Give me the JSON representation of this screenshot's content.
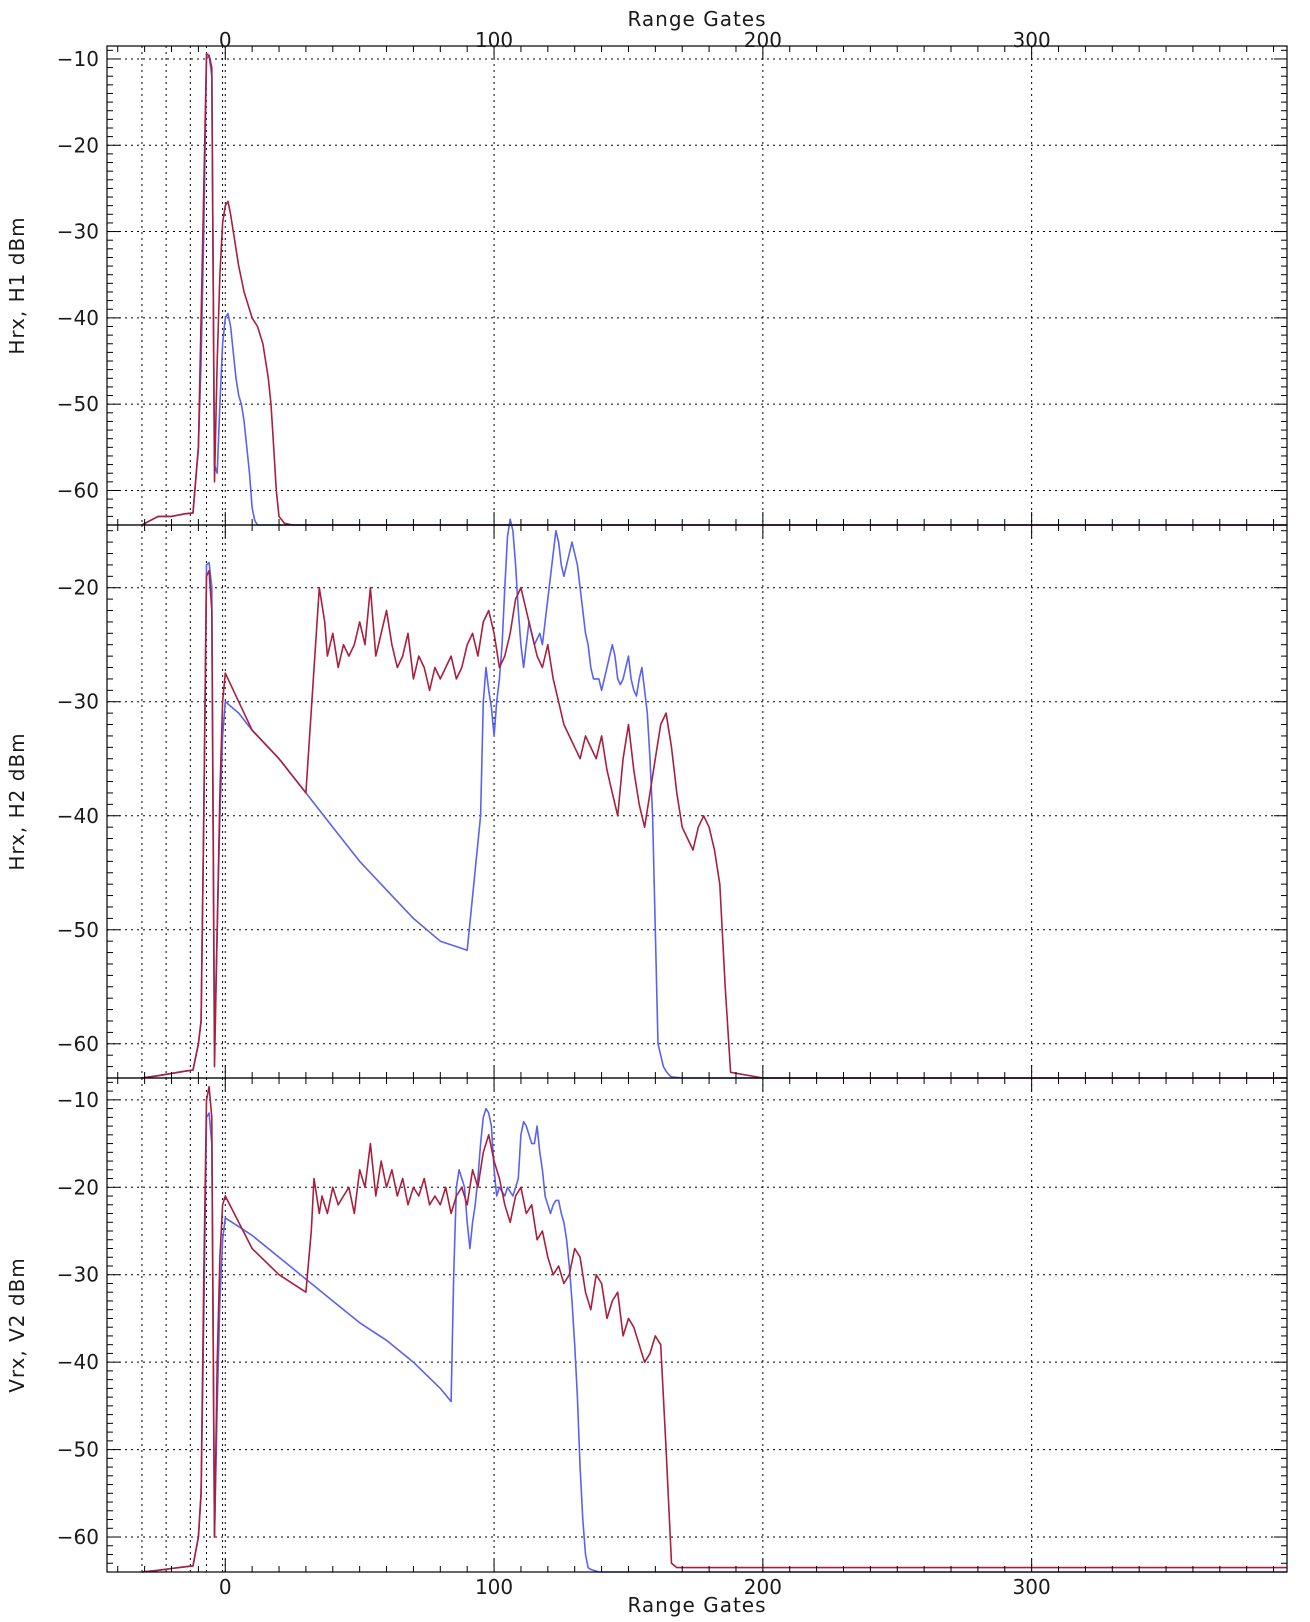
{
  "chart_data": {
    "type": "line",
    "xlabel_top": "Range Gates",
    "xlabel_bottom": "Range Gates",
    "xlim": [
      -44,
      395
    ],
    "x_ticks": [
      0,
      100,
      200,
      300
    ],
    "x_tick_labels": [
      "0",
      "100",
      "200",
      "300"
    ],
    "vertical_dotted_x": [
      -31,
      -22,
      -13,
      -7,
      -1
    ],
    "colors": {
      "blue": "#5b62ee",
      "red": "#a8203e"
    },
    "panels": [
      {
        "ylabel": "Hrx, H1 dBm",
        "ylim": [
          -64,
          -8.5
        ],
        "y_ticks": [
          -10,
          -20,
          -30,
          -40,
          -50,
          -60
        ],
        "y_tick_labels": [
          "−10",
          "−20",
          "−30",
          "−40",
          "−50",
          "−60"
        ],
        "series": [
          {
            "color": "blue",
            "x": [
              -31,
              -28,
              -25,
              -20,
              -15,
              -12,
              -10,
              -9,
              -8,
              -7,
              -6,
              -5,
              -4,
              -3,
              -2,
              -1,
              0,
              1,
              2,
              3,
              4,
              5,
              6,
              7,
              8,
              9,
              10,
              11,
              12,
              14,
              20,
              60,
              120,
              200,
              300,
              395
            ],
            "y": [
              -64,
              -63.5,
              -63,
              -63,
              -62.7,
              -62.6,
              -55,
              -45,
              -30,
              -10,
              -9.6,
              -12,
              -57,
              -58,
              -50,
              -43,
              -40,
              -39.5,
              -41,
              -44,
              -47,
              -49,
              -50,
              -52,
              -55,
              -58,
              -62,
              -63.5,
              -64,
              -64,
              -64,
              -64,
              -64,
              -64,
              -64,
              -64
            ]
          },
          {
            "color": "red",
            "x": [
              -31,
              -28,
              -25,
              -20,
              -15,
              -12,
              -10,
              -9,
              -8,
              -7,
              -6,
              -5,
              -4,
              -3,
              -2,
              -1,
              0,
              1,
              2,
              3,
              4,
              5,
              6,
              7,
              8,
              10,
              12,
              14,
              15,
              16,
              17,
              18,
              19,
              20,
              22,
              25,
              30,
              60,
              120,
              200,
              300,
              395
            ],
            "y": [
              -64,
              -63.5,
              -63,
              -63,
              -62.7,
              -62.6,
              -55,
              -40,
              -25,
              -9.4,
              -9.6,
              -11,
              -59,
              -45,
              -35,
              -29,
              -27,
              -26.5,
              -28,
              -30,
              -32,
              -34,
              -35.5,
              -37,
              -38,
              -40,
              -41,
              -43,
              -45,
              -47,
              -50,
              -55,
              -60,
              -63,
              -63.8,
              -64,
              -64,
              -64,
              -64,
              -64,
              -64,
              -64
            ]
          }
        ]
      },
      {
        "ylabel": "Hrx, H2 dBm",
        "ylim": [
          -63,
          -14.5
        ],
        "y_ticks": [
          -20,
          -30,
          -40,
          -50,
          -60
        ],
        "y_tick_labels": [
          "−20",
          "−30",
          "−40",
          "−50",
          "−60"
        ],
        "series": [
          {
            "color": "blue",
            "x": [
              -31,
              -25,
              -20,
              -15,
              -12,
              -10,
              -9,
              -8,
              -7,
              -6,
              -5,
              -4,
              -3,
              -2,
              -1,
              0,
              5,
              10,
              20,
              30,
              40,
              50,
              60,
              70,
              80,
              90,
              95,
              96,
              97,
              98,
              99,
              100,
              101,
              102,
              103,
              104,
              105,
              106,
              107,
              108,
              109,
              110,
              111,
              112,
              113,
              114,
              115,
              116,
              117,
              118,
              119,
              120,
              121,
              122,
              123,
              124,
              125,
              126,
              127,
              128,
              129,
              130,
              131,
              132,
              133,
              134,
              135,
              136,
              137,
              138,
              139,
              140,
              141,
              142,
              143,
              144,
              145,
              146,
              147,
              148,
              149,
              150,
              151,
              152,
              153,
              154,
              155,
              156,
              157,
              158,
              159,
              160,
              161,
              162,
              163,
              164,
              165,
              166,
              170,
              180,
              200,
              300,
              395
            ],
            "y": [
              -63,
              -62.8,
              -62.6,
              -62.4,
              -62.3,
              -60,
              -58,
              -40,
              -18,
              -17.8,
              -20,
              -60,
              -50,
              -40,
              -33,
              -30,
              -31,
              -32.5,
              -35,
              -38,
              -41,
              -44,
              -46.5,
              -49,
              -51,
              -51.8,
              -40,
              -30,
              -27,
              -29,
              -30.5,
              -33,
              -30,
              -28,
              -25,
              -20,
              -15.5,
              -14,
              -15,
              -18,
              -22,
              -25,
              -27,
              -25,
              -23,
              -24,
              -25,
              -24.5,
              -24,
              -25,
              -23,
              -21,
              -19,
              -17,
              -15,
              -16,
              -18,
              -19,
              -18,
              -17,
              -16,
              -17,
              -18,
              -20,
              -22,
              -24,
              -25,
              -27,
              -28,
              -28,
              -28,
              -29,
              -28,
              -27,
              -26,
              -25,
              -26,
              -28,
              -28.5,
              -28,
              -27,
              -26,
              -28,
              -29,
              -29.5,
              -28,
              -27,
              -29,
              -31,
              -35,
              -40,
              -50,
              -60,
              -61,
              -62,
              -62.4,
              -62.7,
              -62.9,
              -63,
              -63,
              -63,
              -63,
              -63
            ]
          },
          {
            "color": "red",
            "x": [
              -31,
              -25,
              -20,
              -15,
              -12,
              -10,
              -9,
              -8,
              -7,
              -6,
              -5,
              -4,
              -3,
              -2,
              -1,
              0,
              5,
              10,
              20,
              30,
              35,
              37,
              38,
              40,
              42,
              44,
              46,
              48,
              50,
              52,
              54,
              56,
              58,
              60,
              62,
              64,
              66,
              68,
              70,
              72,
              74,
              76,
              78,
              80,
              82,
              84,
              86,
              88,
              90,
              92,
              94,
              96,
              98,
              100,
              102,
              104,
              106,
              108,
              110,
              112,
              114,
              116,
              118,
              120,
              122,
              124,
              126,
              128,
              130,
              132,
              134,
              136,
              138,
              140,
              142,
              144,
              146,
              148,
              150,
              152,
              154,
              156,
              158,
              160,
              162,
              164,
              166,
              168,
              170,
              172,
              174,
              176,
              178,
              180,
              182,
              184,
              186,
              188,
              200,
              300,
              395
            ],
            "y": [
              -63,
              -62.8,
              -62.6,
              -62.4,
              -62.3,
              -60,
              -58,
              -40,
              -19,
              -18.5,
              -22,
              -62,
              -50,
              -38,
              -30,
              -27.5,
              -30,
              -32.5,
              -35,
              -38,
              -20,
              -23,
              -26,
              -24,
              -27,
              -25,
              -26,
              -25,
              -23,
              -25,
              -20,
              -26,
              -24,
              -22,
              -25,
              -27,
              -26,
              -24,
              -28,
              -26,
              -27,
              -29,
              -27,
              -28,
              -27,
              -26,
              -28,
              -27,
              -25,
              -24,
              -26,
              -23,
              -22,
              -24,
              -27,
              -26,
              -24,
              -21,
              -20,
              -22,
              -24,
              -26,
              -27,
              -25,
              -28,
              -30,
              -32,
              -33,
              -34,
              -35,
              -33,
              -34,
              -35,
              -33,
              -36,
              -38,
              -40,
              -35,
              -32,
              -36,
              -39,
              -41,
              -38,
              -35,
              -32,
              -31,
              -34,
              -38,
              -41,
              -42,
              -43,
              -41,
              -40,
              -41,
              -43,
              -46,
              -55,
              -62.5,
              -63,
              -63,
              -63
            ]
          }
        ]
      },
      {
        "ylabel": "Vrx, V2 dBm",
        "ylim": [
          -64,
          -7.5
        ],
        "y_ticks": [
          -10,
          -20,
          -30,
          -40,
          -50,
          -60
        ],
        "y_tick_labels": [
          "−10",
          "−20",
          "−30",
          "−40",
          "−50",
          "−60"
        ],
        "series": [
          {
            "color": "blue",
            "x": [
              -31,
              -25,
              -20,
              -15,
              -12,
              -10,
              -9,
              -8,
              -7,
              -6,
              -5,
              -4,
              -3,
              -2,
              -1,
              0,
              5,
              10,
              20,
              30,
              40,
              50,
              60,
              70,
              80,
              84,
              85,
              86,
              87,
              88,
              89,
              90,
              91,
              92,
              93,
              94,
              95,
              96,
              97,
              98,
              99,
              100,
              101,
              102,
              103,
              104,
              105,
              106,
              107,
              108,
              109,
              110,
              111,
              112,
              113,
              114,
              115,
              116,
              117,
              118,
              119,
              120,
              121,
              122,
              123,
              124,
              125,
              126,
              127,
              128,
              129,
              130,
              131,
              132,
              133,
              134,
              135,
              136,
              137,
              138,
              139,
              140,
              141,
              142,
              143,
              144,
              145,
              150,
              160,
              200,
              300,
              395
            ],
            "y": [
              -64,
              -63.8,
              -63.6,
              -63.4,
              -63.3,
              -60,
              -55,
              -35,
              -12,
              -11.5,
              -15,
              -60,
              -45,
              -33,
              -26,
              -23.5,
              -24.5,
              -25.5,
              -28,
              -30.5,
              -33,
              -35.5,
              -37.5,
              -40,
              -43,
              -44.5,
              -30,
              -20,
              -18,
              -19,
              -20,
              -24,
              -27,
              -24,
              -22,
              -19,
              -15,
              -12,
              -11,
              -11.5,
              -13,
              -18,
              -21,
              -20,
              -20.5,
              -21,
              -20,
              -20.5,
              -21,
              -20,
              -19,
              -14,
              -12.5,
              -13,
              -14,
              -15,
              -15,
              -13,
              -16,
              -18,
              -21,
              -22,
              -23,
              -22,
              -21.5,
              -21.5,
              -23,
              -24,
              -26,
              -29,
              -33,
              -38,
              -44,
              -52,
              -58,
              -62,
              -63.5,
              -63.7,
              -63.8,
              -63.9,
              -64,
              -64,
              -64,
              -64,
              -64,
              -64,
              -64,
              -64,
              -64,
              -64,
              -64,
              -64
            ]
          },
          {
            "color": "red",
            "x": [
              -31,
              -25,
              -20,
              -15,
              -12,
              -10,
              -9,
              -8,
              -7,
              -6,
              -5,
              -4,
              -3,
              -2,
              -1,
              0,
              5,
              10,
              20,
              30,
              32,
              33,
              35,
              36,
              38,
              40,
              42,
              44,
              46,
              48,
              50,
              52,
              54,
              56,
              58,
              60,
              62,
              64,
              66,
              68,
              70,
              72,
              74,
              76,
              78,
              80,
              82,
              84,
              86,
              88,
              90,
              92,
              94,
              96,
              98,
              100,
              102,
              104,
              106,
              108,
              110,
              112,
              114,
              116,
              118,
              120,
              122,
              124,
              126,
              128,
              130,
              132,
              134,
              136,
              138,
              140,
              142,
              144,
              146,
              148,
              150,
              152,
              154,
              156,
              158,
              160,
              162,
              164,
              166,
              168,
              200,
              300,
              395
            ],
            "y": [
              -64,
              -63.8,
              -63.6,
              -63.4,
              -63.3,
              -60,
              -55,
              -30,
              -10,
              -8.5,
              -12,
              -60,
              -40,
              -28,
              -22,
              -21,
              -24,
              -27,
              -30,
              -32,
              -25,
              -19,
              -23,
              -21,
              -23,
              -20,
              -22,
              -21,
              -20,
              -23,
              -18,
              -20,
              -15,
              -21,
              -17,
              -20,
              -18,
              -21,
              -19,
              -22,
              -20,
              -21,
              -19,
              -22,
              -21,
              -22,
              -20,
              -23,
              -21,
              -20,
              -22,
              -18,
              -20,
              -16,
              -14,
              -17,
              -19,
              -22,
              -24,
              -21,
              -20,
              -23,
              -22,
              -26,
              -25,
              -28,
              -30,
              -29,
              -31,
              -30,
              -27,
              -28,
              -32,
              -34,
              -30,
              -31,
              -35,
              -33,
              -32,
              -37,
              -35,
              -36,
              -38,
              -40,
              -39,
              -37,
              -38,
              -50,
              -63,
              -63.5,
              -63.5,
              -63.5,
              -63.5
            ]
          }
        ]
      }
    ]
  }
}
